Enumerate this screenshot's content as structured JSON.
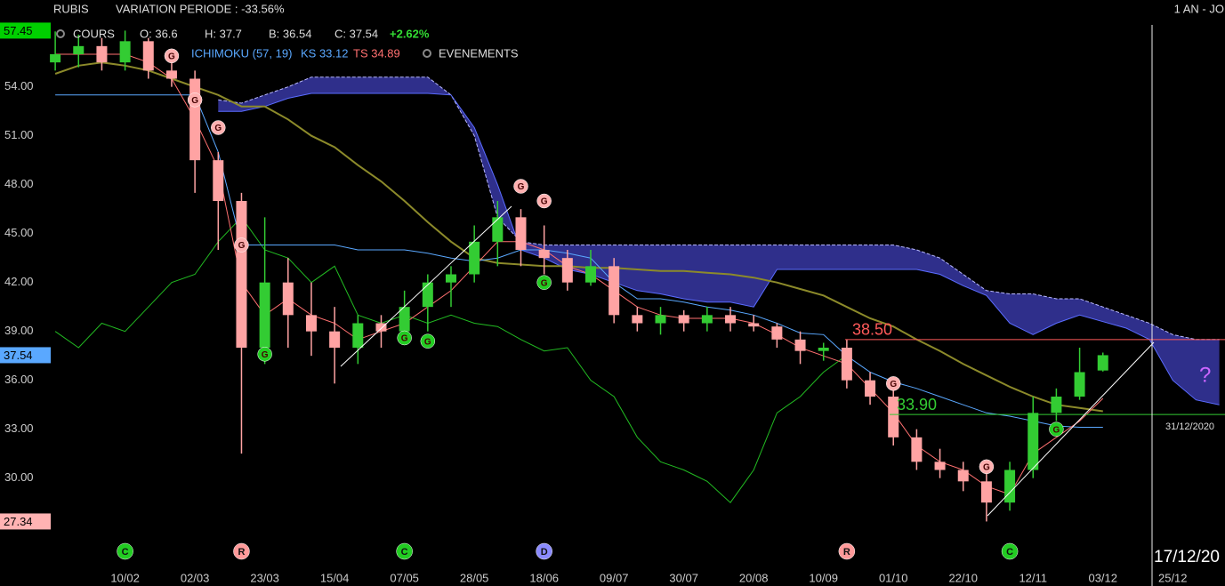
{
  "chart_data": {
    "type": "candlestick",
    "header": {
      "symbol": "RUBIS",
      "variation": "VARIATION PERIODE : -33.56%",
      "period": "1 AN - JO",
      "cours": "COURS",
      "open": "O: 36.6",
      "high": "H: 37.7",
      "low": "B: 36.54",
      "close": "C: 37.54",
      "change": "+2.62%",
      "ichimoku": "ICHIMOKU (57, 19)",
      "ks": "KS 33.12",
      "ts": "TS 34.89",
      "events": "EVENEMENTS"
    },
    "categories": [
      null,
      null,
      null,
      "10/02",
      null,
      null,
      "02/03",
      null,
      null,
      "23/03",
      null,
      null,
      "15/04",
      null,
      null,
      "07/05",
      null,
      null,
      "28/05",
      null,
      null,
      "18/06",
      null,
      null,
      "09/07",
      null,
      null,
      "30/07",
      null,
      null,
      "20/08",
      null,
      null,
      "10/09",
      null,
      null,
      "01/10",
      null,
      null,
      "22/10",
      null,
      null,
      "12/11",
      null,
      null,
      "03/12",
      null,
      null,
      "25/12",
      null,
      null
    ],
    "ylim": [
      26.6,
      57.8
    ],
    "yticks": [
      {
        "value": 54,
        "label": "54.00"
      },
      {
        "value": 51,
        "label": "51.00"
      },
      {
        "value": 48,
        "label": "48.00"
      },
      {
        "value": 45,
        "label": "45.00"
      },
      {
        "value": 42,
        "label": "42.00"
      },
      {
        "value": 39,
        "label": "39.00"
      },
      {
        "value": 36,
        "label": "36.00"
      },
      {
        "value": 33,
        "label": "33.00"
      },
      {
        "value": 30,
        "label": "30.00"
      }
    ],
    "grid": false,
    "up_color": "#33cc33",
    "down_color": "#ffa3a3",
    "ohlc": {
      "open": [
        55.5,
        56,
        56.5,
        55.5,
        56.8,
        55,
        54.5,
        49.5,
        47,
        38,
        42,
        40,
        39,
        38,
        39.5,
        39,
        40.5,
        42,
        42.5,
        44.5,
        46,
        44,
        43.5,
        42,
        43,
        40,
        39.5,
        40,
        39.5,
        40,
        39.5,
        39.3,
        38.5,
        37.8,
        38,
        36,
        35,
        32.5,
        31,
        30.5,
        29.8,
        28.5,
        30.5,
        34,
        35,
        36.6,
        null,
        null,
        null,
        null,
        null
      ],
      "high": [
        57.4,
        57.2,
        57,
        57.45,
        57,
        55.5,
        55,
        50,
        47.5,
        46,
        43.5,
        42,
        40.5,
        40,
        40,
        41.5,
        42.5,
        43,
        45.5,
        47,
        46.5,
        45.5,
        44,
        44,
        43.5,
        40.5,
        40.5,
        40.3,
        40.5,
        40.5,
        40,
        39.5,
        39,
        38.3,
        38.5,
        36.5,
        35.5,
        33,
        31.8,
        31,
        30.5,
        31,
        35,
        35.5,
        38,
        37.7,
        null,
        null,
        null,
        null,
        null
      ],
      "low": [
        55,
        55.2,
        55,
        55,
        54.5,
        54,
        47.5,
        44,
        31.5,
        37,
        38,
        37.5,
        35.8,
        37,
        38,
        38.5,
        39,
        40.5,
        42,
        43,
        43,
        42.5,
        41.5,
        41.8,
        39.5,
        39,
        38.8,
        39,
        39,
        39,
        39,
        38,
        37,
        37.2,
        35.5,
        34.5,
        32,
        30.5,
        30,
        29.2,
        27.34,
        28,
        30,
        33.5,
        34.8,
        36.54,
        null,
        null,
        null,
        null,
        null
      ],
      "close": [
        56,
        56.5,
        55.5,
        56.8,
        55,
        54.5,
        49.5,
        47,
        38,
        42,
        40,
        39,
        38,
        39.5,
        39,
        40.5,
        42,
        42.5,
        44.5,
        46,
        44,
        43.5,
        42,
        43,
        40,
        39.5,
        40,
        39.5,
        40,
        39.5,
        39.3,
        38.5,
        37.8,
        38,
        36,
        35,
        32.5,
        31,
        30.5,
        29.8,
        28.5,
        30.5,
        34,
        35,
        36.5,
        37.54,
        null,
        null,
        null,
        null,
        null
      ]
    },
    "cloud_color": "#34349a",
    "series": [
      {
        "name": "span_a",
        "color": "#b8b8ff",
        "values": [
          null,
          null,
          null,
          null,
          null,
          null,
          null,
          53.2,
          53,
          53.5,
          54,
          54.6,
          54.6,
          54.6,
          54.6,
          54.6,
          54.6,
          53.5,
          51,
          46,
          44.5,
          44.3,
          44.3,
          44.3,
          44.3,
          44.3,
          44.3,
          44.3,
          44.3,
          44.3,
          44.3,
          44.3,
          44.3,
          44.3,
          44.3,
          44.3,
          44.3,
          44,
          43.5,
          42.5,
          41.5,
          41.3,
          41.3,
          41,
          41,
          40.5,
          40,
          39.5,
          38.8,
          38.5,
          38.5
        ]
      },
      {
        "name": "span_b",
        "color": "#5a6cff",
        "values": [
          null,
          null,
          null,
          null,
          null,
          null,
          null,
          52.5,
          52.5,
          52.8,
          53.3,
          53.6,
          53.6,
          53.6,
          53.6,
          53.6,
          53.6,
          53.5,
          51.5,
          48,
          44,
          43.5,
          42.8,
          42.5,
          42,
          41.5,
          41.3,
          41,
          40.8,
          40.8,
          40.5,
          42.8,
          42.8,
          42.8,
          42.8,
          42.8,
          42.8,
          42.8,
          42.5,
          41.8,
          41.2,
          39.5,
          38.8,
          39.5,
          40,
          39.6,
          39.2,
          38.5,
          36,
          34.8,
          34.5
        ]
      },
      {
        "name": "chikou",
        "color": "#22bb22",
        "values": [
          39,
          38,
          39.5,
          39,
          40.5,
          42,
          42.5,
          44.5,
          46,
          44,
          43.5,
          42,
          43,
          40,
          39.5,
          40,
          39.5,
          40,
          39.5,
          39.3,
          38.5,
          37.8,
          38,
          36,
          35,
          32.5,
          31,
          30.5,
          29.8,
          28.5,
          30.5,
          34,
          35,
          36.5,
          37.54,
          null,
          null,
          null,
          null,
          null,
          null,
          null,
          null,
          null,
          null,
          null,
          null,
          null,
          null,
          null,
          null
        ]
      },
      {
        "name": "ma",
        "color": "#8c8a2a",
        "values": [
          54.8,
          55.3,
          55.5,
          55.3,
          55,
          54.5,
          54,
          53.5,
          52.8,
          52.8,
          52,
          51,
          50.3,
          49.2,
          48.2,
          47,
          45.7,
          44.5,
          43.5,
          43.2,
          43.1,
          43,
          43,
          42.9,
          42.9,
          42.8,
          42.7,
          42.7,
          42.6,
          42.5,
          42.3,
          42,
          41.6,
          41.2,
          40.5,
          39.8,
          39.3,
          38.5,
          37.8,
          37,
          36.3,
          35.6,
          35,
          34.5,
          34.3,
          34.1,
          null,
          null,
          null,
          null,
          null
        ]
      },
      {
        "name": "kijun",
        "color": "#5aa8ff",
        "values": [
          53.5,
          53.5,
          53.5,
          53.5,
          53.5,
          53.5,
          53.5,
          50,
          44.3,
          44.3,
          44.3,
          44.3,
          44.3,
          44,
          44,
          44,
          43.8,
          43.5,
          43.3,
          43.5,
          44,
          44,
          43.8,
          43.5,
          42,
          41,
          41,
          40.8,
          40.5,
          40.3,
          40,
          39.5,
          38.9,
          38.8,
          37.5,
          36.5,
          35.9,
          35.5,
          35,
          34.5,
          34,
          33.8,
          33.5,
          33.2,
          33.12,
          33.12,
          null,
          null,
          null,
          null,
          null
        ]
      },
      {
        "name": "tenkan",
        "color": "#ff7070",
        "values": [
          56,
          56,
          56,
          56,
          55.5,
          54.5,
          52,
          49,
          42,
          40,
          41,
          40,
          39.5,
          38.5,
          39,
          39.5,
          40.5,
          41.5,
          43,
          44.5,
          44.5,
          44,
          43,
          42.5,
          41.5,
          40.5,
          40,
          39.8,
          39.8,
          39.8,
          39.5,
          38.8,
          38,
          37.5,
          37,
          35.5,
          34,
          32,
          31,
          30.5,
          29.5,
          29,
          31.5,
          32.5,
          33.5,
          34.89,
          null,
          null,
          null,
          null,
          null
        ]
      }
    ],
    "signal_label": "G",
    "signals": [
      {
        "color": "#ffb0b0",
        "values": [
          null,
          null,
          null,
          null,
          null,
          55.9,
          53.2,
          51.5,
          44.3,
          null,
          null,
          null,
          null,
          null,
          null,
          null,
          null,
          null,
          null,
          null,
          47.9,
          47,
          null,
          null,
          null,
          null,
          null,
          null,
          null,
          null,
          null,
          null,
          null,
          null,
          null,
          null,
          35.8,
          null,
          null,
          null,
          30.7,
          null,
          null,
          null,
          null,
          null,
          null,
          null,
          null,
          null,
          null
        ]
      },
      {
        "color": "#22cc22",
        "values": [
          null,
          null,
          null,
          null,
          null,
          null,
          null,
          null,
          null,
          37.6,
          null,
          null,
          null,
          null,
          null,
          38.6,
          38.4,
          null,
          null,
          null,
          null,
          42,
          null,
          null,
          null,
          null,
          null,
          null,
          null,
          null,
          null,
          null,
          null,
          null,
          null,
          null,
          null,
          null,
          null,
          null,
          null,
          null,
          null,
          33,
          null,
          null,
          null,
          null,
          null,
          null,
          null
        ]
      }
    ],
    "events": [
      null,
      null,
      null,
      "C",
      null,
      null,
      null,
      null,
      "R",
      null,
      null,
      null,
      null,
      null,
      null,
      "C",
      null,
      null,
      null,
      null,
      null,
      "D",
      null,
      null,
      null,
      null,
      null,
      null,
      null,
      null,
      null,
      null,
      null,
      null,
      "R",
      null,
      null,
      null,
      null,
      null,
      null,
      "C",
      null,
      null,
      null,
      null,
      null,
      null,
      null,
      null,
      null
    ],
    "event_colors": {
      "C": "#22cc22",
      "R": "#ff9a9a",
      "D": "#8a8aff"
    },
    "levels": [
      {
        "value": 38.5,
        "label": "38.50",
        "color": "#ff5a5a"
      },
      {
        "value": 33.9,
        "label": "33.90",
        "color": "#33cc33"
      }
    ],
    "price_tags": [
      {
        "value": 57.45,
        "color": "#00d000"
      },
      {
        "value": 37.54,
        "color": "#5aa8ff"
      },
      {
        "value": 27.34,
        "color": "#ffb3b3"
      }
    ],
    "annotations": {
      "cursor_date": "17/12/20",
      "future_date": "31/12/2020",
      "question": "?"
    }
  }
}
